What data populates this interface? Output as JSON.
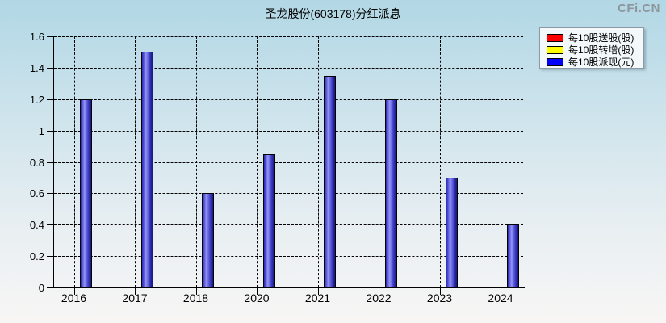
{
  "title": "圣龙股份(603178)分红派息",
  "watermark": "CFi.CN",
  "legend": [
    {
      "label": "每10股送股(股)",
      "color": "#ff0000"
    },
    {
      "label": "每10股转增(股)",
      "color": "#ffff00"
    },
    {
      "label": "每10股派现(元)",
      "color": "#0000ff"
    }
  ],
  "chart_data": {
    "type": "bar",
    "title": "圣龙股份(603178)分红派息",
    "categories": [
      "2016",
      "2017",
      "2018",
      "2020",
      "2021",
      "2022",
      "2023",
      "2024"
    ],
    "series": [
      {
        "name": "每10股送股(股)",
        "color": "#ff0000",
        "values": [
          0,
          0,
          0,
          0,
          0,
          0,
          0,
          0
        ]
      },
      {
        "name": "每10股转增(股)",
        "color": "#ffff00",
        "values": [
          0,
          0,
          0,
          0,
          0,
          0,
          0,
          0
        ]
      },
      {
        "name": "每10股派现(元)",
        "color": "#0000ff",
        "values": [
          1.2,
          1.5,
          0.6,
          0.85,
          1.35,
          1.2,
          0.7,
          0.4
        ]
      }
    ],
    "xlabel": "",
    "ylabel": "",
    "ylim": [
      0,
      1.6
    ],
    "ytick_interval": 0.2,
    "grid": true,
    "gridline_style": "dashed",
    "legend_position": "top-right",
    "bar_color_hint": "blue gradient cylinder"
  }
}
